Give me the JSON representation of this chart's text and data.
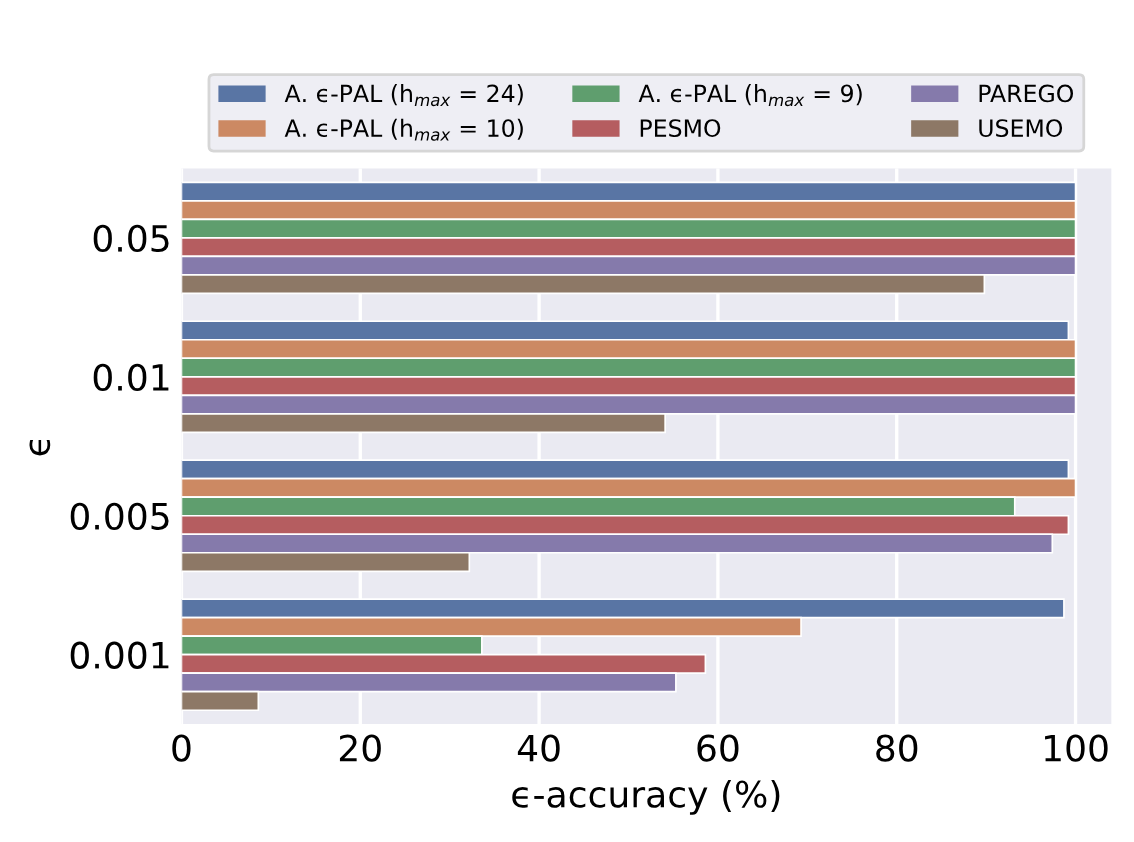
{
  "chart_data": {
    "type": "bar",
    "orientation": "horizontal",
    "xlabel": "ϵ-accuracy (%)",
    "ylabel": "ϵ",
    "categories": [
      "0.05",
      "0.01",
      "0.005",
      "0.001"
    ],
    "series": [
      {
        "name": "A. ϵ-PAL (h$_{max}$ = 24)",
        "color": "#5975a4",
        "values": [
          100,
          99.2,
          99.2,
          98.7
        ]
      },
      {
        "name": "A. ϵ-PAL (h$_{max}$ = 10)",
        "color": "#cc8963",
        "values": [
          100,
          100,
          100,
          69.3
        ]
      },
      {
        "name": "A. ϵ-PAL (h$_{max}$ = 9)",
        "color": "#5f9e6e",
        "values": [
          100,
          100,
          93.2,
          33.6
        ]
      },
      {
        "name": "PESMO",
        "color": "#b55d60",
        "values": [
          100,
          100,
          99.2,
          58.6
        ]
      },
      {
        "name": "PAREGO",
        "color": "#857aab",
        "values": [
          100,
          100,
          97.4,
          55.3
        ]
      },
      {
        "name": "USEMO",
        "color": "#8d7866",
        "values": [
          89.8,
          54.1,
          32.2,
          8.6
        ]
      }
    ],
    "xlim": [
      0,
      104
    ],
    "xticks": [
      0,
      20,
      40,
      60,
      80,
      100
    ],
    "grid": "x",
    "legend": "top"
  }
}
